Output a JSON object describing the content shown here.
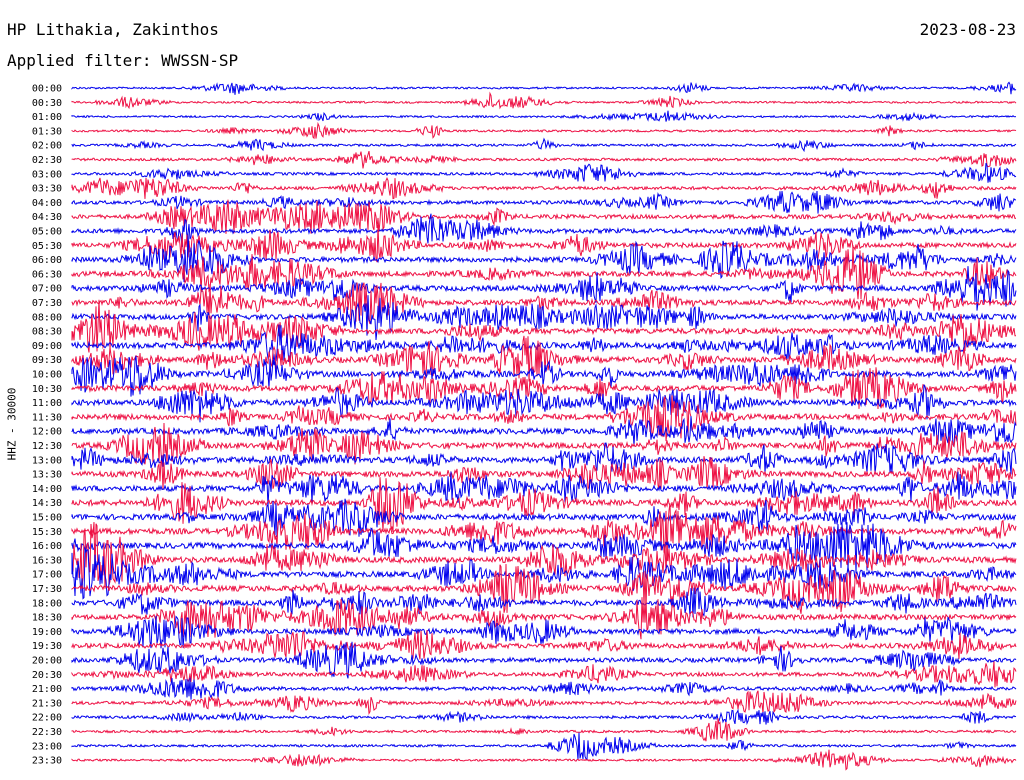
{
  "header": {
    "station": "HP Lithakia, Zakinthos",
    "date": "2023-08-23",
    "filter": "Applied filter: WWSSN-SP"
  },
  "chart_data": {
    "type": "line",
    "ylabel": "HHZ - 30000",
    "row_labels": [
      "00:00",
      "00:30",
      "01:00",
      "01:30",
      "02:00",
      "02:30",
      "03:00",
      "03:30",
      "04:00",
      "04:30",
      "05:00",
      "05:30",
      "06:00",
      "06:30",
      "07:00",
      "07:30",
      "08:00",
      "08:30",
      "09:00",
      "09:30",
      "10:00",
      "10:30",
      "11:00",
      "11:30",
      "12:00",
      "12:30",
      "13:00",
      "13:30",
      "14:00",
      "14:30",
      "15:00",
      "15:30",
      "16:00",
      "16:30",
      "17:00",
      "17:30",
      "18:00",
      "18:30",
      "19:00",
      "19:30",
      "20:00",
      "20:30",
      "21:00",
      "21:30",
      "22:00",
      "22:30",
      "23:00",
      "23:30"
    ],
    "colors": [
      "#0000ee",
      "#ee1144"
    ],
    "activity_level": [
      0.15,
      0.15,
      0.15,
      0.2,
      0.25,
      0.3,
      0.35,
      0.45,
      0.55,
      0.65,
      0.75,
      0.8,
      0.85,
      0.9,
      0.9,
      0.9,
      0.9,
      0.95,
      1.0,
      1.0,
      1.0,
      1.0,
      1.0,
      1.0,
      1.0,
      1.0,
      1.0,
      1.0,
      1.0,
      1.0,
      1.0,
      1.0,
      1.0,
      1.0,
      1.0,
      1.0,
      0.95,
      0.9,
      0.85,
      0.8,
      0.7,
      0.6,
      0.55,
      0.45,
      0.35,
      0.25,
      0.25,
      0.2
    ]
  }
}
